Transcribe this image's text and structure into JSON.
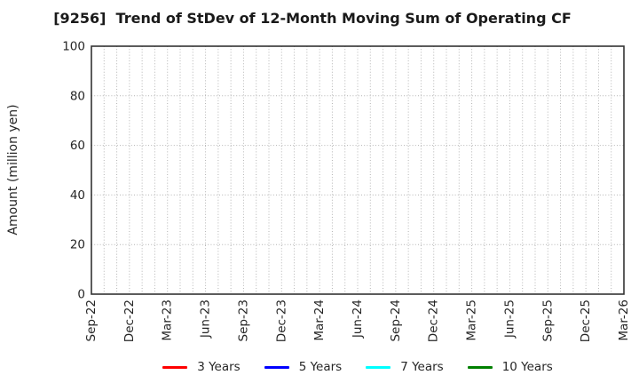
{
  "chart_data": {
    "type": "line",
    "title": "[9256]  Trend of StDev of 12-Month Moving Sum of Operating CF",
    "ylabel": "Amount (million yen)",
    "xlabel": "",
    "ylim": [
      0,
      100
    ],
    "y_ticks": [
      0,
      20,
      40,
      60,
      80,
      100
    ],
    "x_ticks": [
      "Sep-22",
      "Dec-22",
      "Mar-23",
      "Jun-23",
      "Sep-23",
      "Dec-23",
      "Mar-24",
      "Jun-24",
      "Sep-24",
      "Dec-24",
      "Mar-25",
      "Jun-25",
      "Sep-25",
      "Dec-25",
      "Mar-26"
    ],
    "x_tick_interval_months": 3,
    "months_total": 42,
    "grid": {
      "style": "dotted",
      "color": "#b4b4b4",
      "vertical": "every month",
      "horizontal": "every 20 units"
    },
    "legend_position": "bottom-center",
    "no_data_plotted": true,
    "series": [
      {
        "name": "3 Years",
        "color": "#ff0000",
        "values": []
      },
      {
        "name": "5 Years",
        "color": "#0000ff",
        "values": []
      },
      {
        "name": "7 Years",
        "color": "#00ffff",
        "values": []
      },
      {
        "name": "10 Years",
        "color": "#008000",
        "values": []
      }
    ]
  }
}
